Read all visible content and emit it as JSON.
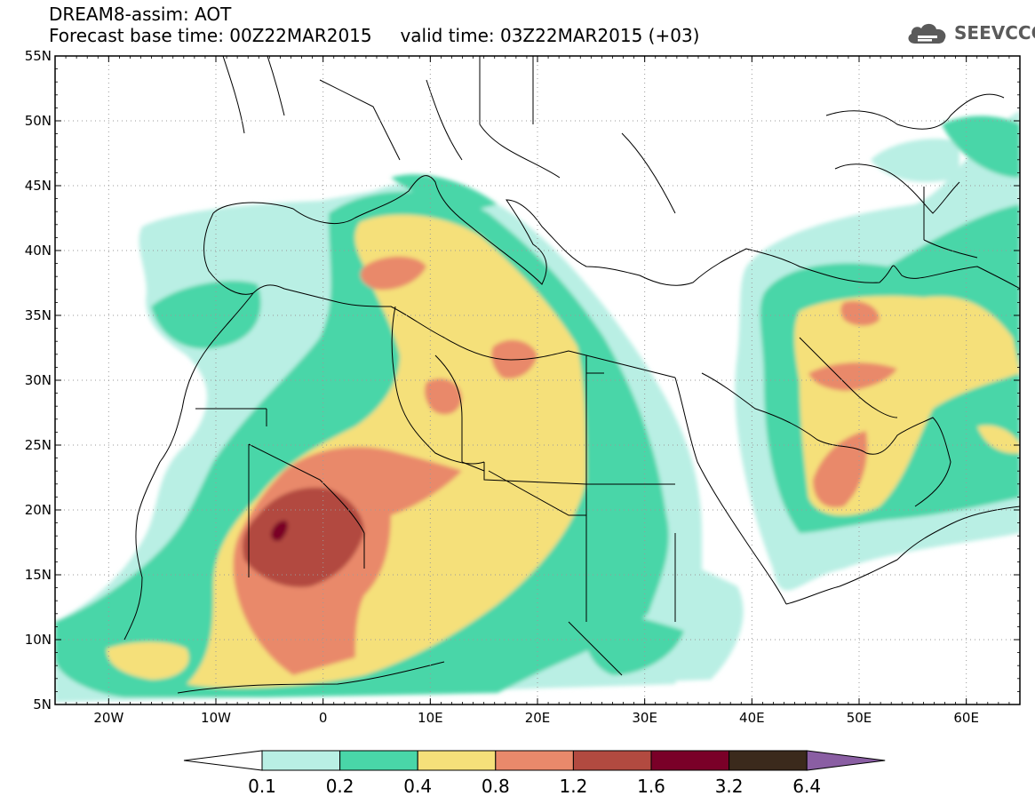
{
  "title": {
    "model": "DREAM8-assim: AOT",
    "base_time_label": "Forecast base time: 00Z22MAR2015",
    "valid_time_label": "valid time: 03Z22MAR2015 (+03)"
  },
  "logo": {
    "text": "SEEVCCC",
    "icon": "cloud-icon"
  },
  "map": {
    "lon_range": [
      -25,
      65
    ],
    "lat_range": [
      5,
      55
    ],
    "lat_ticks": [
      {
        "v": 55,
        "label": "55N"
      },
      {
        "v": 50,
        "label": "50N"
      },
      {
        "v": 45,
        "label": "45N"
      },
      {
        "v": 40,
        "label": "40N"
      },
      {
        "v": 35,
        "label": "35N"
      },
      {
        "v": 30,
        "label": "30N"
      },
      {
        "v": 25,
        "label": "25N"
      },
      {
        "v": 20,
        "label": "20N"
      },
      {
        "v": 15,
        "label": "15N"
      },
      {
        "v": 10,
        "label": "10N"
      },
      {
        "v": 5,
        "label": "5N"
      }
    ],
    "lon_ticks": [
      {
        "v": -20,
        "label": "20W"
      },
      {
        "v": -10,
        "label": "10W"
      },
      {
        "v": 0,
        "label": "0"
      },
      {
        "v": 10,
        "label": "10E"
      },
      {
        "v": 20,
        "label": "20E"
      },
      {
        "v": 30,
        "label": "30E"
      },
      {
        "v": 40,
        "label": "40E"
      },
      {
        "v": 50,
        "label": "50E"
      },
      {
        "v": 60,
        "label": "60E"
      }
    ],
    "grid": "dotted"
  },
  "colorbar": {
    "levels": [
      "0.1",
      "0.2",
      "0.4",
      "0.8",
      "1.2",
      "1.6",
      "3.2",
      "6.4"
    ],
    "colors": [
      "#ffffff",
      "#b9efe4",
      "#49d6a8",
      "#f5e07a",
      "#e9896b",
      "#b24a40",
      "#7a0028",
      "#3b2a1c",
      "#8a5ea3"
    ]
  }
}
